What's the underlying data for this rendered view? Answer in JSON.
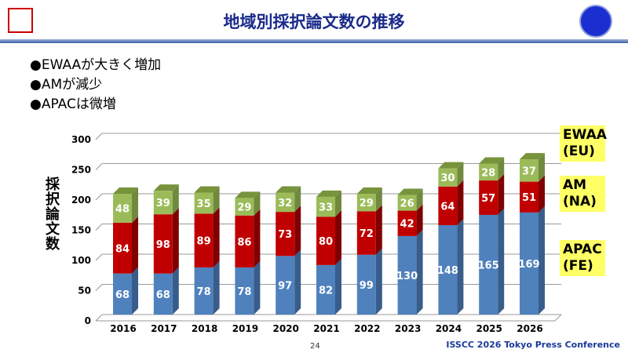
{
  "header": {
    "title": "地域別採択論文数の推移",
    "left_logo": "SSCS",
    "right_logo": "ISSCC"
  },
  "bullets": [
    "●EWAAが大きく増加",
    "●AMが減少",
    "●APACは微増"
  ],
  "chart_data": {
    "type": "bar",
    "stacked": true,
    "three_d": true,
    "categories": [
      "2016",
      "2017",
      "2018",
      "2019",
      "2020",
      "2021",
      "2022",
      "2023",
      "2024",
      "2025",
      "2026"
    ],
    "series": [
      {
        "name": "APAC\n(FE)",
        "color": "#4f81bd",
        "values": [
          68,
          68,
          78,
          78,
          97,
          82,
          99,
          130,
          148,
          165,
          169
        ]
      },
      {
        "name": "AM\n(NA)",
        "color": "#c00000",
        "values": [
          84,
          98,
          89,
          86,
          73,
          80,
          72,
          42,
          64,
          57,
          51
        ]
      },
      {
        "name": "EWAA\n(EU)",
        "color": "#9bbb59",
        "values": [
          48,
          39,
          35,
          29,
          32,
          33,
          29,
          26,
          30,
          28,
          37
        ]
      }
    ],
    "ylabel": "採択論文数",
    "ylim": [
      0,
      300
    ],
    "yticks": [
      "0",
      "50",
      "100",
      "150",
      "200",
      "250",
      "300"
    ],
    "grid": true,
    "legend": "right"
  },
  "footer": {
    "page": "24",
    "conference": "ISSCC 2026 Tokyo Press Conference"
  }
}
